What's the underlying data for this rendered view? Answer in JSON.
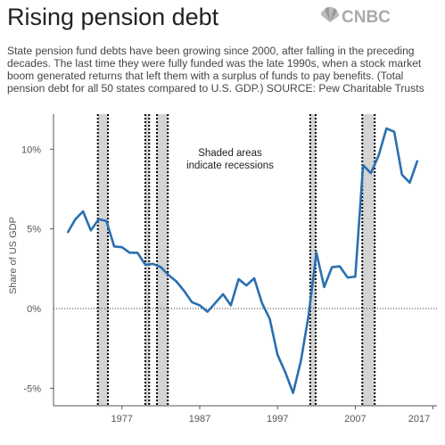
{
  "chart_data": {
    "type": "line",
    "title": "Rising pension debt",
    "logo": "CNBC",
    "subtitle": "State pension fund debts have been growing since 2000, after falling in the preceding decades. The last time they were fully funded was the late 1990s, when a stock market boom generated returns that left them with a surplus of funds to pay benefits. (Total pension debt for all 50 states compared to U.S. GDP.) SOURCE: Pew Charitable Trusts",
    "y_label": "Share of US GDP",
    "annotation": [
      "Shaded areas",
      "indicate recessions"
    ],
    "x": [
      1970,
      1971,
      1972,
      1973,
      1974,
      1975,
      1976,
      1977,
      1978,
      1979,
      1980,
      1981,
      1982,
      1983,
      1984,
      1985,
      1986,
      1987,
      1988,
      1989,
      1990,
      1991,
      1992,
      1993,
      1994,
      1995,
      1996,
      1997,
      1998,
      1999,
      2000,
      2001,
      2002,
      2003,
      2004,
      2005,
      2006,
      2007,
      2008,
      2009,
      2010,
      2011,
      2012,
      2013,
      2014,
      2015
    ],
    "series": [
      {
        "name": "Share of US GDP",
        "color": "#2a6fb0",
        "values": [
          4.75,
          5.6,
          6.1,
          4.9,
          5.6,
          5.5,
          3.9,
          3.85,
          3.5,
          3.5,
          2.75,
          2.8,
          2.6,
          2.1,
          1.7,
          1.1,
          0.4,
          0.2,
          -0.2,
          0.35,
          0.9,
          0.2,
          1.85,
          1.45,
          1.9,
          0.35,
          -0.65,
          -2.9,
          -4,
          -5.3,
          -3.3,
          -0.4,
          3.5,
          1.35,
          2.6,
          2.65,
          1.95,
          2.0,
          9.0,
          8.5,
          9.6,
          11.3,
          11.1,
          8.4,
          7.9,
          9.3
        ]
      }
    ],
    "recessions": [
      [
        1973.9,
        1975.2
      ],
      [
        1980,
        1980.5
      ],
      [
        1981.5,
        1982.9
      ],
      [
        2001.2,
        2001.9
      ],
      [
        2007.9,
        2009.5
      ]
    ],
    "recession_color": "#d4d4d4",
    "xlim": [
      1968.2,
      2017.5
    ],
    "xticks": [
      1977,
      1987,
      1997,
      2007,
      2017
    ],
    "ylim": [
      -6.1,
      12.2
    ],
    "yticks": [
      {
        "value": 10,
        "label": "10%"
      },
      {
        "value": 5,
        "label": "5%"
      },
      {
        "value": 0,
        "label": "0%"
      },
      {
        "value": -5,
        "label": "-5%"
      }
    ]
  }
}
